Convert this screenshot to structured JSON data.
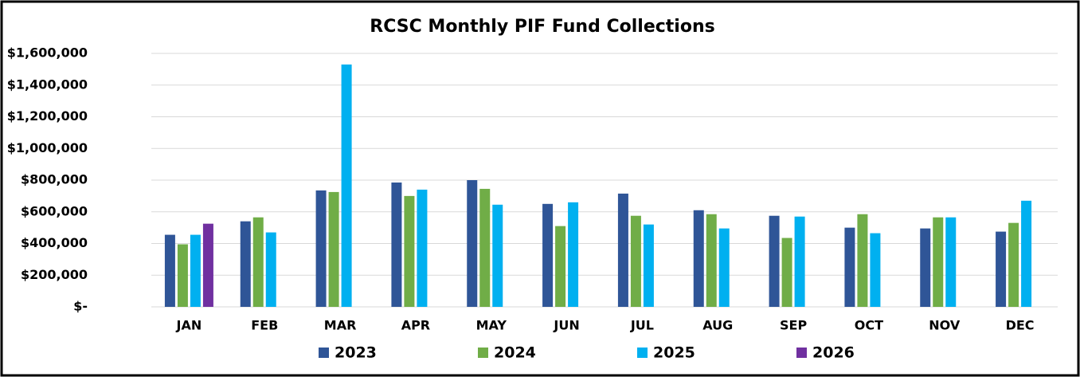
{
  "chart_data": {
    "type": "bar",
    "title": "RCSC Monthly PIF Fund Collections",
    "categories": [
      "JAN",
      "FEB",
      "MAR",
      "APR",
      "MAY",
      "JUN",
      "JUL",
      "AUG",
      "SEP",
      "OCT",
      "NOV",
      "DEC"
    ],
    "series": [
      {
        "name": "2023",
        "color": "#2f5597",
        "values": [
          455000,
          540000,
          735000,
          785000,
          800000,
          650000,
          715000,
          610000,
          575000,
          500000,
          495000,
          475000
        ]
      },
      {
        "name": "2024",
        "color": "#70ad47",
        "values": [
          395000,
          565000,
          725000,
          700000,
          745000,
          510000,
          575000,
          585000,
          435000,
          585000,
          565000,
          530000
        ]
      },
      {
        "name": "2025",
        "color": "#00b0f0",
        "values": [
          455000,
          470000,
          1530000,
          740000,
          645000,
          660000,
          520000,
          495000,
          570000,
          465000,
          565000,
          670000
        ]
      },
      {
        "name": "2026",
        "color": "#7030a0",
        "values": [
          525000,
          null,
          null,
          null,
          null,
          null,
          null,
          null,
          null,
          null,
          null,
          null
        ]
      }
    ],
    "ylim": [
      0,
      1600000
    ],
    "yticks": [
      {
        "value": 0,
        "label": "$-"
      },
      {
        "value": 200000,
        "label": "$200,000"
      },
      {
        "value": 400000,
        "label": "$400,000"
      },
      {
        "value": 600000,
        "label": "$600,000"
      },
      {
        "value": 800000,
        "label": "$800,000"
      },
      {
        "value": 1000000,
        "label": "$1,000,000"
      },
      {
        "value": 1200000,
        "label": "$1,200,000"
      },
      {
        "value": 1400000,
        "label": "$1,400,000"
      },
      {
        "value": 1600000,
        "label": "$1,600,000"
      }
    ],
    "grid": true,
    "legend": "bottom"
  }
}
